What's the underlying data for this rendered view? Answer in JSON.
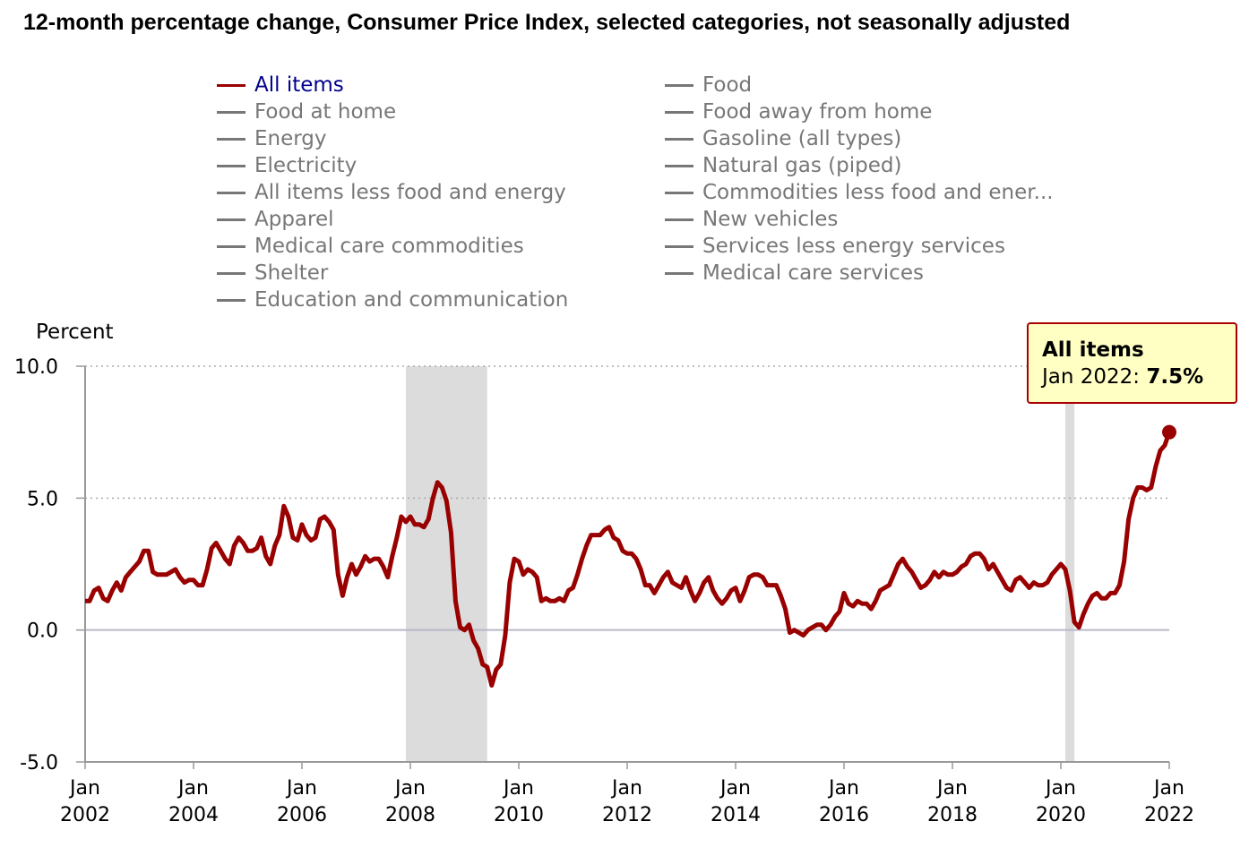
{
  "chart_data": {
    "type": "line",
    "title": "12-month percentage change, Consumer Price Index, selected categories, not seasonally adjusted",
    "ylabel": "Percent",
    "xlabel": "",
    "ylim": [
      -5,
      10
    ],
    "y_ticks": [
      "10.0",
      "5.0",
      "0.0",
      "-5.0"
    ],
    "y_tick_values": [
      10,
      5,
      0,
      -5
    ],
    "x_start": "Jan 2002",
    "x_end": "Jan 2022",
    "x_ticks": [
      {
        "month": "Jan",
        "year": "2002"
      },
      {
        "month": "Jan",
        "year": "2004"
      },
      {
        "month": "Jan",
        "year": "2006"
      },
      {
        "month": "Jan",
        "year": "2008"
      },
      {
        "month": "Jan",
        "year": "2010"
      },
      {
        "month": "Jan",
        "year": "2012"
      },
      {
        "month": "Jan",
        "year": "2014"
      },
      {
        "month": "Jan",
        "year": "2016"
      },
      {
        "month": "Jan",
        "year": "2018"
      },
      {
        "month": "Jan",
        "year": "2020"
      },
      {
        "month": "Jan",
        "year": "2022"
      }
    ],
    "grid": "horizontal dotted at 5 and 10",
    "recessions": [
      {
        "start": "Dec 2007",
        "end": "Jun 2009",
        "start_index": 71,
        "end_index": 89
      },
      {
        "start": "Feb 2020",
        "end": "Apr 2020",
        "start_index": 217,
        "end_index": 219
      }
    ],
    "legend": {
      "placement": "top",
      "items": [
        "All items",
        "Food",
        "Food at home",
        "Food away from home",
        "Energy",
        "Gasoline (all types)",
        "Electricity",
        "Natural gas (piped)",
        "All items less food and energy",
        "Commodities less food and ener...",
        "Apparel",
        "New vehicles",
        "Medical care commodities",
        "Services less energy services",
        "Shelter",
        "Medical care services",
        "Education and communication"
      ],
      "active": "All items"
    },
    "series": [
      {
        "name": "All items",
        "color": "#990000",
        "values": [
          1.1,
          1.1,
          1.5,
          1.6,
          1.2,
          1.1,
          1.5,
          1.8,
          1.5,
          2.0,
          2.2,
          2.4,
          2.6,
          3.0,
          3.0,
          2.2,
          2.1,
          2.1,
          2.1,
          2.2,
          2.3,
          2.0,
          1.8,
          1.9,
          1.9,
          1.7,
          1.7,
          2.3,
          3.1,
          3.3,
          3.0,
          2.7,
          2.5,
          3.2,
          3.5,
          3.3,
          3.0,
          3.0,
          3.1,
          3.5,
          2.8,
          2.5,
          3.2,
          3.6,
          4.7,
          4.3,
          3.5,
          3.4,
          4.0,
          3.6,
          3.4,
          3.5,
          4.2,
          4.3,
          4.1,
          3.8,
          2.1,
          1.3,
          2.0,
          2.5,
          2.1,
          2.4,
          2.8,
          2.6,
          2.7,
          2.7,
          2.4,
          2.0,
          2.8,
          3.5,
          4.3,
          4.1,
          4.3,
          4.0,
          4.0,
          3.9,
          4.2,
          5.0,
          5.6,
          5.4,
          4.9,
          3.7,
          1.1,
          0.1,
          0.0,
          0.2,
          -0.4,
          -0.7,
          -1.3,
          -1.4,
          -2.1,
          -1.5,
          -1.3,
          -0.2,
          1.8,
          2.7,
          2.6,
          2.1,
          2.3,
          2.2,
          2.0,
          1.1,
          1.2,
          1.1,
          1.1,
          1.2,
          1.1,
          1.5,
          1.6,
          2.1,
          2.7,
          3.2,
          3.6,
          3.6,
          3.6,
          3.8,
          3.9,
          3.5,
          3.4,
          3.0,
          2.9,
          2.9,
          2.7,
          2.3,
          1.7,
          1.7,
          1.4,
          1.7,
          2.0,
          2.2,
          1.8,
          1.7,
          1.6,
          2.0,
          1.5,
          1.1,
          1.4,
          1.8,
          2.0,
          1.5,
          1.2,
          1.0,
          1.2,
          1.5,
          1.6,
          1.1,
          1.5,
          2.0,
          2.1,
          2.1,
          2.0,
          1.7,
          1.7,
          1.7,
          1.3,
          0.8,
          -0.1,
          0.0,
          -0.1,
          -0.2,
          0.0,
          0.1,
          0.2,
          0.2,
          0.0,
          0.2,
          0.5,
          0.7,
          1.4,
          1.0,
          0.9,
          1.1,
          1.0,
          1.0,
          0.8,
          1.1,
          1.5,
          1.6,
          1.7,
          2.1,
          2.5,
          2.7,
          2.4,
          2.2,
          1.9,
          1.6,
          1.7,
          1.9,
          2.2,
          2.0,
          2.2,
          2.1,
          2.1,
          2.2,
          2.4,
          2.5,
          2.8,
          2.9,
          2.9,
          2.7,
          2.3,
          2.5,
          2.2,
          1.9,
          1.6,
          1.5,
          1.9,
          2.0,
          1.8,
          1.6,
          1.8,
          1.7,
          1.7,
          1.8,
          2.1,
          2.3,
          2.5,
          2.3,
          1.5,
          0.3,
          0.1,
          0.6,
          1.0,
          1.3,
          1.4,
          1.2,
          1.2,
          1.4,
          1.4,
          1.7,
          2.6,
          4.2,
          5.0,
          5.4,
          5.4,
          5.3,
          5.4,
          6.2,
          6.8,
          7.0,
          7.5
        ]
      }
    ],
    "tooltip": {
      "series": "All items",
      "label": "Jan 2022:",
      "value": "7.5%"
    }
  }
}
